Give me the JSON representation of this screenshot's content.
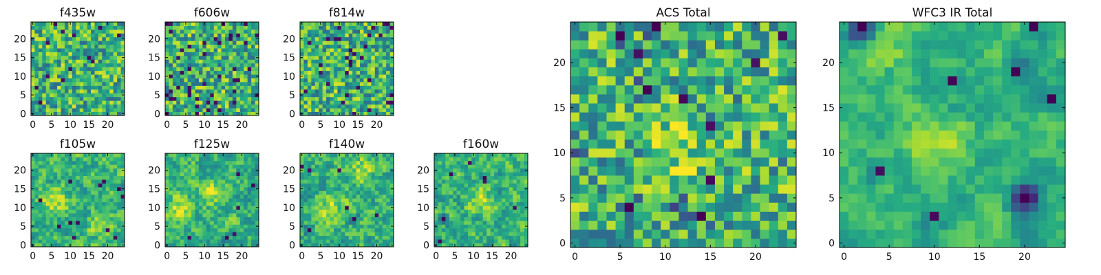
{
  "figure": {
    "colormap": "viridis",
    "interpolation": "nearest",
    "grid": false
  },
  "chart_data": [
    {
      "type": "heatmap",
      "title": "f435w",
      "grid_shape": [
        25,
        25
      ],
      "xlim": [
        0,
        24
      ],
      "ylim": [
        0,
        24
      ],
      "xticks": [
        "0",
        "5",
        "10",
        "15",
        "20"
      ],
      "yticks": [
        "0",
        "5",
        "10",
        "15",
        "20"
      ],
      "color_scale": [
        0,
        1
      ],
      "seed": 11,
      "smooth": 0,
      "darkrate": 0.03,
      "bright_regions": [],
      "dark_regions": []
    },
    {
      "type": "heatmap",
      "title": "f606w",
      "grid_shape": [
        25,
        25
      ],
      "xlim": [
        0,
        24
      ],
      "ylim": [
        0,
        24
      ],
      "xticks": [
        "0",
        "5",
        "10",
        "15",
        "20"
      ],
      "yticks": [
        "0",
        "5",
        "10",
        "15",
        "20"
      ],
      "color_scale": [
        0,
        1
      ],
      "seed": 23,
      "smooth": 0,
      "darkrate": 0.06,
      "bright_regions": [],
      "dark_regions": []
    },
    {
      "type": "heatmap",
      "title": "f814w",
      "grid_shape": [
        25,
        25
      ],
      "xlim": [
        0,
        24
      ],
      "ylim": [
        0,
        24
      ],
      "xticks": [
        "0",
        "5",
        "10",
        "15",
        "20"
      ],
      "yticks": [
        "0",
        "5",
        "10",
        "15",
        "20"
      ],
      "color_scale": [
        0,
        1
      ],
      "seed": 37,
      "smooth": 0,
      "darkrate": 0.05,
      "bright_regions": [],
      "dark_regions": []
    },
    {
      "type": "heatmap",
      "title": "f105w",
      "grid_shape": [
        25,
        25
      ],
      "xlim": [
        0,
        24
      ],
      "ylim": [
        0,
        24
      ],
      "xticks": [
        "0",
        "5",
        "10",
        "15",
        "20"
      ],
      "yticks": [
        "0",
        "5",
        "10",
        "15",
        "20"
      ],
      "color_scale": [
        0,
        1
      ],
      "seed": 41,
      "smooth": 1,
      "darkrate": 0.01,
      "bright_regions": [
        {
          "x": 6,
          "y": 12,
          "r": 5
        },
        {
          "x": 18,
          "y": 6,
          "r": 4
        }
      ],
      "dark_regions": [
        {
          "x": 23,
          "y": 15,
          "r": 1
        },
        {
          "x": 22,
          "y": 2,
          "r": 1
        },
        {
          "x": 10,
          "y": 6,
          "r": 1
        }
      ]
    },
    {
      "type": "heatmap",
      "title": "f125w",
      "grid_shape": [
        25,
        25
      ],
      "xlim": [
        0,
        24
      ],
      "ylim": [
        0,
        24
      ],
      "xticks": [
        "0",
        "5",
        "10",
        "15",
        "20"
      ],
      "yticks": [
        "0",
        "5",
        "10",
        "15",
        "20"
      ],
      "color_scale": [
        0,
        1
      ],
      "seed": 53,
      "smooth": 1,
      "darkrate": 0.01,
      "bright_regions": [
        {
          "x": 3,
          "y": 10,
          "r": 4
        },
        {
          "x": 12,
          "y": 14,
          "r": 4
        }
      ],
      "dark_regions": [
        {
          "x": 16,
          "y": 2,
          "r": 1
        },
        {
          "x": 23,
          "y": 16,
          "r": 1
        }
      ]
    },
    {
      "type": "heatmap",
      "title": "f140w",
      "grid_shape": [
        25,
        25
      ],
      "xlim": [
        0,
        24
      ],
      "ylim": [
        0,
        24
      ],
      "xticks": [
        "0",
        "5",
        "10",
        "15",
        "20"
      ],
      "yticks": [
        "0",
        "5",
        "10",
        "15",
        "20"
      ],
      "color_scale": [
        0,
        1
      ],
      "seed": 67,
      "smooth": 1,
      "darkrate": 0.01,
      "bright_regions": [
        {
          "x": 8,
          "y": 10,
          "r": 5
        },
        {
          "x": 16,
          "y": 20,
          "r": 4
        }
      ],
      "dark_regions": [
        {
          "x": 2,
          "y": 4,
          "r": 1
        },
        {
          "x": 14,
          "y": 7,
          "r": 1
        }
      ]
    },
    {
      "type": "heatmap",
      "title": "f160w",
      "grid_shape": [
        25,
        25
      ],
      "xlim": [
        0,
        24
      ],
      "ylim": [
        0,
        24
      ],
      "xticks": [
        "0",
        "5",
        "10",
        "15",
        "20"
      ],
      "yticks": [
        "0",
        "5",
        "10",
        "15",
        "20"
      ],
      "color_scale": [
        0,
        1
      ],
      "seed": 79,
      "smooth": 1,
      "darkrate": 0.01,
      "bright_regions": [
        {
          "x": 12,
          "y": 12,
          "r": 5
        }
      ],
      "dark_regions": [
        {
          "x": 13,
          "y": 18,
          "r": 1
        },
        {
          "x": 21,
          "y": 10,
          "r": 1
        },
        {
          "x": 2,
          "y": 7,
          "r": 1
        }
      ]
    },
    {
      "type": "heatmap",
      "title": "ACS Total",
      "grid_shape": [
        25,
        25
      ],
      "xlim": [
        0,
        24
      ],
      "ylim": [
        0,
        24
      ],
      "xticks": [
        "0",
        "5",
        "10",
        "15",
        "20"
      ],
      "yticks": [
        "0",
        "5",
        "10",
        "15",
        "20"
      ],
      "color_scale": [
        0,
        1
      ],
      "seed": 97,
      "smooth": 0,
      "darkrate": 0.01,
      "bright_regions": [
        {
          "x": 11,
          "y": 11,
          "r": 4
        }
      ],
      "dark_regions": [
        {
          "x": 5,
          "y": 23,
          "r": 1
        },
        {
          "x": 8,
          "y": 17,
          "r": 1
        },
        {
          "x": 15,
          "y": 13,
          "r": 1
        },
        {
          "x": 6,
          "y": 4,
          "r": 1
        },
        {
          "x": 11,
          "y": 4,
          "r": 1
        },
        {
          "x": 14,
          "y": 3,
          "r": 1
        },
        {
          "x": 0,
          "y": 10,
          "r": 1
        },
        {
          "x": 9,
          "y": 24,
          "r": 1
        }
      ]
    },
    {
      "type": "heatmap",
      "title": "WFC3 IR Total",
      "grid_shape": [
        25,
        25
      ],
      "xlim": [
        0,
        24
      ],
      "ylim": [
        0,
        24
      ],
      "xticks": [
        "0",
        "5",
        "10",
        "15",
        "20"
      ],
      "yticks": [
        "0",
        "5",
        "10",
        "15",
        "20"
      ],
      "color_scale": [
        0,
        1
      ],
      "seed": 131,
      "smooth": 2,
      "darkrate": 0.0,
      "bright_regions": [
        {
          "x": 11,
          "y": 11,
          "r": 4
        },
        {
          "x": 4,
          "y": 21,
          "r": 2
        }
      ],
      "dark_regions": [
        {
          "x": 12,
          "y": 18,
          "r": 1
        },
        {
          "x": 20,
          "y": 5,
          "r": 2
        },
        {
          "x": 2,
          "y": 24,
          "r": 2
        },
        {
          "x": 21,
          "y": 24,
          "r": 1
        },
        {
          "x": 4,
          "y": 8,
          "r": 1
        },
        {
          "x": 10,
          "y": 3,
          "r": 1
        },
        {
          "x": 23,
          "y": 16,
          "r": 1
        },
        {
          "x": 19,
          "y": 19,
          "r": 1
        }
      ]
    }
  ]
}
